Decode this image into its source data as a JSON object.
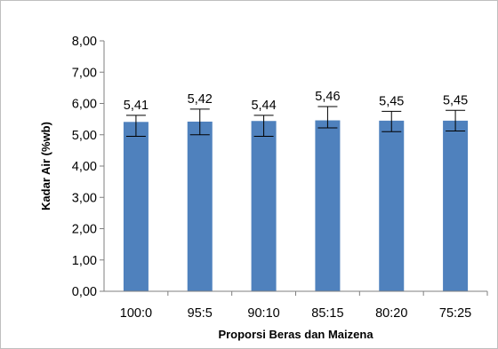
{
  "chart_data": {
    "type": "bar",
    "title": "",
    "xlabel": "Proporsi Beras dan Maizena",
    "ylabel": "Kadar Air (%wb)",
    "categories": [
      "100:0",
      "95:5",
      "90:10",
      "85:15",
      "80:20",
      "75:25"
    ],
    "values": [
      5.41,
      5.42,
      5.44,
      5.46,
      5.45,
      5.45
    ],
    "value_labels": [
      "5,41",
      "5,42",
      "5,44",
      "5,46",
      "5,45",
      "5,45"
    ],
    "error_low": [
      4.95,
      5.0,
      4.95,
      5.22,
      5.1,
      5.12
    ],
    "error_high": [
      5.62,
      5.82,
      5.62,
      5.9,
      5.75,
      5.78
    ],
    "ylim": [
      0,
      8
    ],
    "yticks": [
      0,
      1,
      2,
      3,
      4,
      5,
      6,
      7,
      8
    ],
    "ytick_labels": [
      "0,00",
      "1,00",
      "2,00",
      "3,00",
      "4,00",
      "5,00",
      "6,00",
      "7,00",
      "8,00"
    ],
    "grid": false,
    "legend": "none",
    "bar_color": "#4f81bd"
  }
}
